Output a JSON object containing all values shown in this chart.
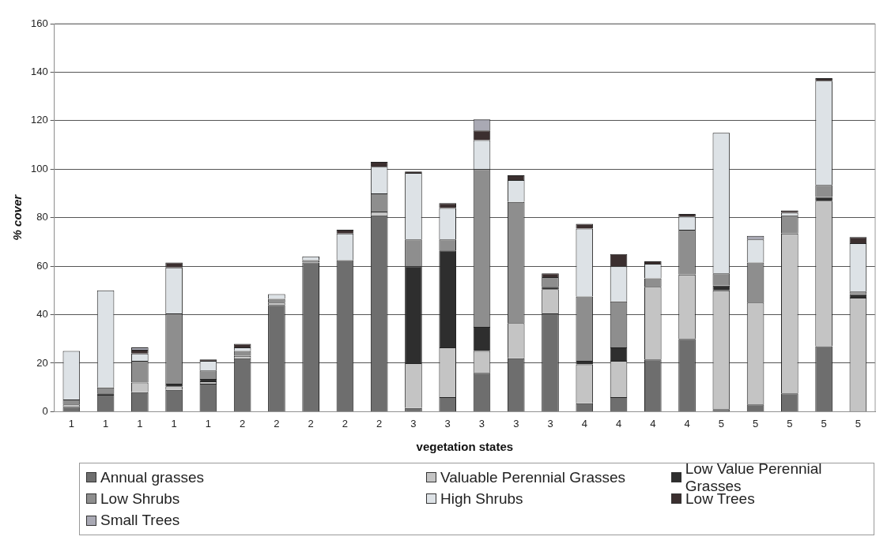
{
  "chart_data": {
    "type": "bar",
    "stacked": true,
    "xlabel": "vegetation states",
    "ylabel": "% cover",
    "categories": [
      "1",
      "1",
      "1",
      "1",
      "1",
      "2",
      "2",
      "2",
      "2",
      "2",
      "3",
      "3",
      "3",
      "3",
      "3",
      "4",
      "4",
      "4",
      "4",
      "5",
      "5",
      "5",
      "5",
      "5"
    ],
    "ylim": [
      0,
      160
    ],
    "yticks": [
      0,
      20,
      40,
      60,
      80,
      100,
      120,
      140,
      160
    ],
    "grid": "y",
    "legend": "bottom",
    "series": [
      {
        "name": "Annual grasses",
        "color": "#6e6e6e",
        "values": [
          2,
          7,
          8,
          9,
          11.5,
          22,
          44,
          61.5,
          62.5,
          81,
          1.5,
          6,
          16,
          22,
          40.5,
          3.5,
          6,
          21.5,
          30,
          1,
          3,
          7.5,
          27,
          null
        ]
      },
      {
        "name": "Valuable Perennial Grasses",
        "color": "#c4c4c4",
        "values": [
          1,
          null,
          4,
          1.5,
          1,
          1,
          1,
          null,
          null,
          1.5,
          18.5,
          20.5,
          9,
          14.5,
          10,
          16,
          15,
          30,
          26.5,
          49,
          42,
          66,
          60,
          47
        ]
      },
      {
        "name": "Low Value Perennial Grasses",
        "color": "#2e2e2e",
        "values": [
          null,
          0.5,
          null,
          1,
          1,
          null,
          null,
          null,
          null,
          null,
          40,
          40,
          10,
          null,
          1,
          1.5,
          5.5,
          null,
          null,
          2,
          null,
          null,
          1.5,
          1.5
        ]
      },
      {
        "name": "Low Shrubs",
        "color": "#8e8e8e",
        "values": [
          2,
          2.5,
          9,
          29,
          3.5,
          2,
          1.5,
          1,
          null,
          7.5,
          11,
          4.5,
          65,
          50,
          4,
          26.5,
          19,
          3.5,
          18.5,
          5,
          16.5,
          7.5,
          5,
          1
        ]
      },
      {
        "name": "High Shrubs",
        "color": "#dde2e6",
        "values": [
          20,
          40,
          3,
          19,
          4,
          1.5,
          2,
          1.5,
          11,
          11,
          27.5,
          13,
          12,
          9,
          null,
          28,
          14.5,
          6,
          5.5,
          58,
          9.5,
          1,
          43,
          20
        ]
      },
      {
        "name": "Low Trees",
        "color": "#3b2f2f",
        "values": [
          null,
          null,
          1.5,
          2,
          0.5,
          1.5,
          null,
          null,
          1.5,
          2,
          0.5,
          2,
          4,
          2,
          1.5,
          2,
          5,
          1,
          1,
          null,
          null,
          1,
          1,
          2.5
        ]
      },
      {
        "name": "Small Trees",
        "color": "#a9a9b4",
        "values": [
          null,
          null,
          1,
          null,
          null,
          null,
          null,
          null,
          null,
          null,
          null,
          null,
          4.5,
          null,
          null,
          null,
          null,
          null,
          null,
          null,
          1.5,
          null,
          null,
          null
        ]
      }
    ]
  }
}
